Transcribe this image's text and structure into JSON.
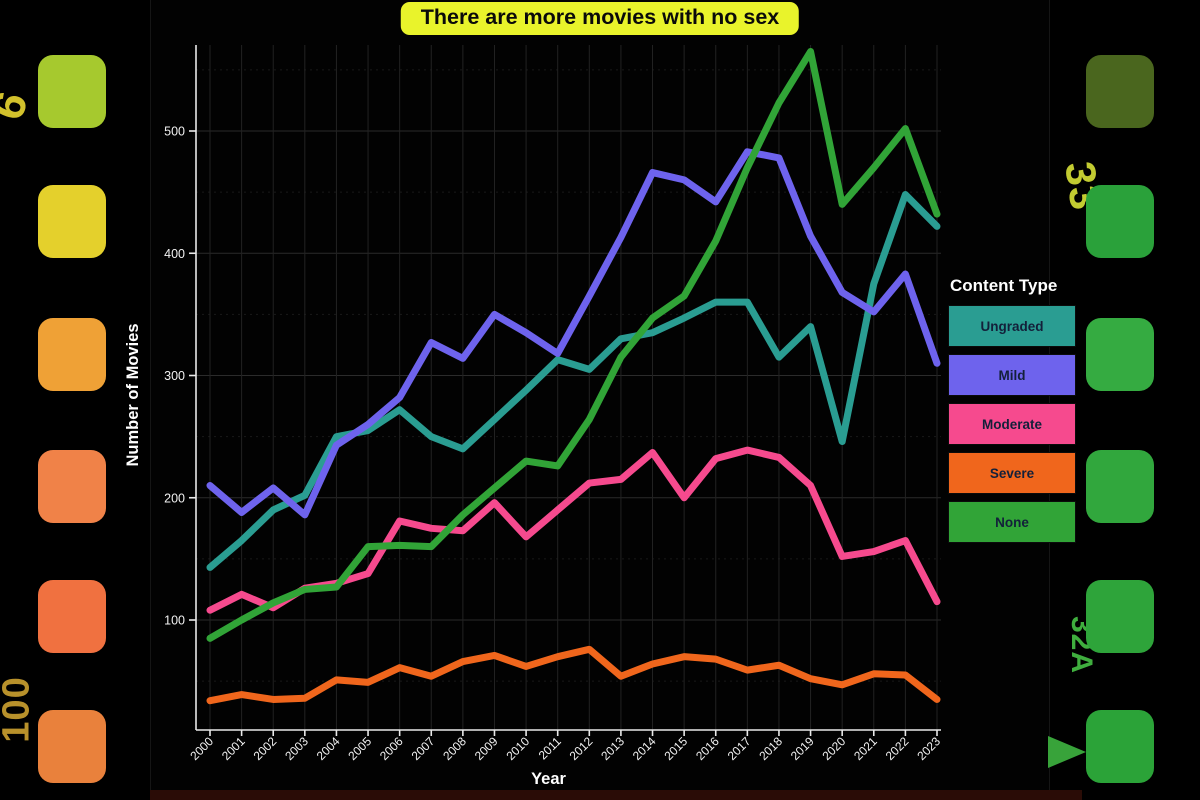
{
  "banner": {
    "text": "There are more movies with no sex",
    "bg": "#e9f32b"
  },
  "legend": {
    "title": "Content Type",
    "items": [
      {
        "label": "Ungraded",
        "color": "#2a9d92"
      },
      {
        "label": "Mild",
        "color": "#6e63ed"
      },
      {
        "label": "Moderate",
        "color": "#f64a8e"
      },
      {
        "label": "Severe",
        "color": "#f0661c"
      },
      {
        "label": "None",
        "color": "#31a437"
      }
    ]
  },
  "chart_data": {
    "type": "line",
    "title": "There are more movies with no sex",
    "xlabel": "Year",
    "ylabel": "Number of Movies",
    "x": [
      2000,
      2001,
      2002,
      2003,
      2004,
      2005,
      2006,
      2007,
      2008,
      2009,
      2010,
      2011,
      2012,
      2013,
      2014,
      2015,
      2016,
      2017,
      2018,
      2019,
      2020,
      2021,
      2022,
      2023
    ],
    "series": [
      {
        "name": "Ungraded",
        "color": "#2a9d92",
        "values": [
          143,
          165,
          190,
          202,
          250,
          255,
          272,
          250,
          240,
          264,
          288,
          313,
          305,
          330,
          335,
          347,
          360,
          360,
          315,
          340,
          246,
          375,
          448,
          422
        ]
      },
      {
        "name": "Mild",
        "color": "#6e63ed",
        "values": [
          210,
          188,
          208,
          186,
          243,
          260,
          282,
          327,
          314,
          350,
          335,
          318,
          365,
          413,
          466,
          460,
          442,
          483,
          478,
          414,
          368,
          352,
          383,
          310
        ]
      },
      {
        "name": "Moderate",
        "color": "#f64a8e",
        "values": [
          108,
          121,
          110,
          126,
          130,
          138,
          181,
          175,
          173,
          196,
          168,
          190,
          212,
          215,
          237,
          200,
          232,
          239,
          233,
          210,
          152,
          156,
          165,
          115
        ]
      },
      {
        "name": "Severe",
        "color": "#f0661c",
        "values": [
          34,
          39,
          35,
          36,
          51,
          49,
          61,
          54,
          66,
          71,
          62,
          70,
          76,
          54,
          64,
          70,
          68,
          59,
          63,
          52,
          47,
          56,
          55,
          35
        ]
      },
      {
        "name": "None",
        "color": "#31a437",
        "values": [
          85,
          100,
          114,
          125,
          127,
          160,
          161,
          160,
          186,
          208,
          230,
          226,
          264,
          315,
          347,
          365,
          410,
          470,
          523,
          565,
          440,
          470,
          502,
          432
        ]
      }
    ],
    "y_ticks": [
      100,
      200,
      300,
      400,
      500
    ],
    "y_minor": [
      50,
      150,
      250,
      350,
      450,
      550
    ],
    "ylim": [
      10,
      570
    ],
    "xlim": [
      2000,
      2023
    ],
    "grid": true,
    "legend_position": "right"
  },
  "film_strip": {
    "left_holes": [
      "#a6c92e",
      "#e4d02c",
      "#efa136",
      "#f08248",
      "#f07140",
      "#e9813c"
    ],
    "right_holes": [
      "#4a661e",
      "#2aa13a",
      "#35ab41",
      "#31a73d",
      "#2ea43a",
      "#2ba338"
    ],
    "left_top_text": "6",
    "left_bottom_text": "100",
    "right_top_text": "33",
    "right_bottom_text": "32A",
    "left_top_color": "#d2c12c",
    "left_bottom_color": "#b8912b",
    "right_top_color": "#c2cb31",
    "right_bottom_color": "#3fae3e",
    "arrow_color": "#38a33a"
  }
}
